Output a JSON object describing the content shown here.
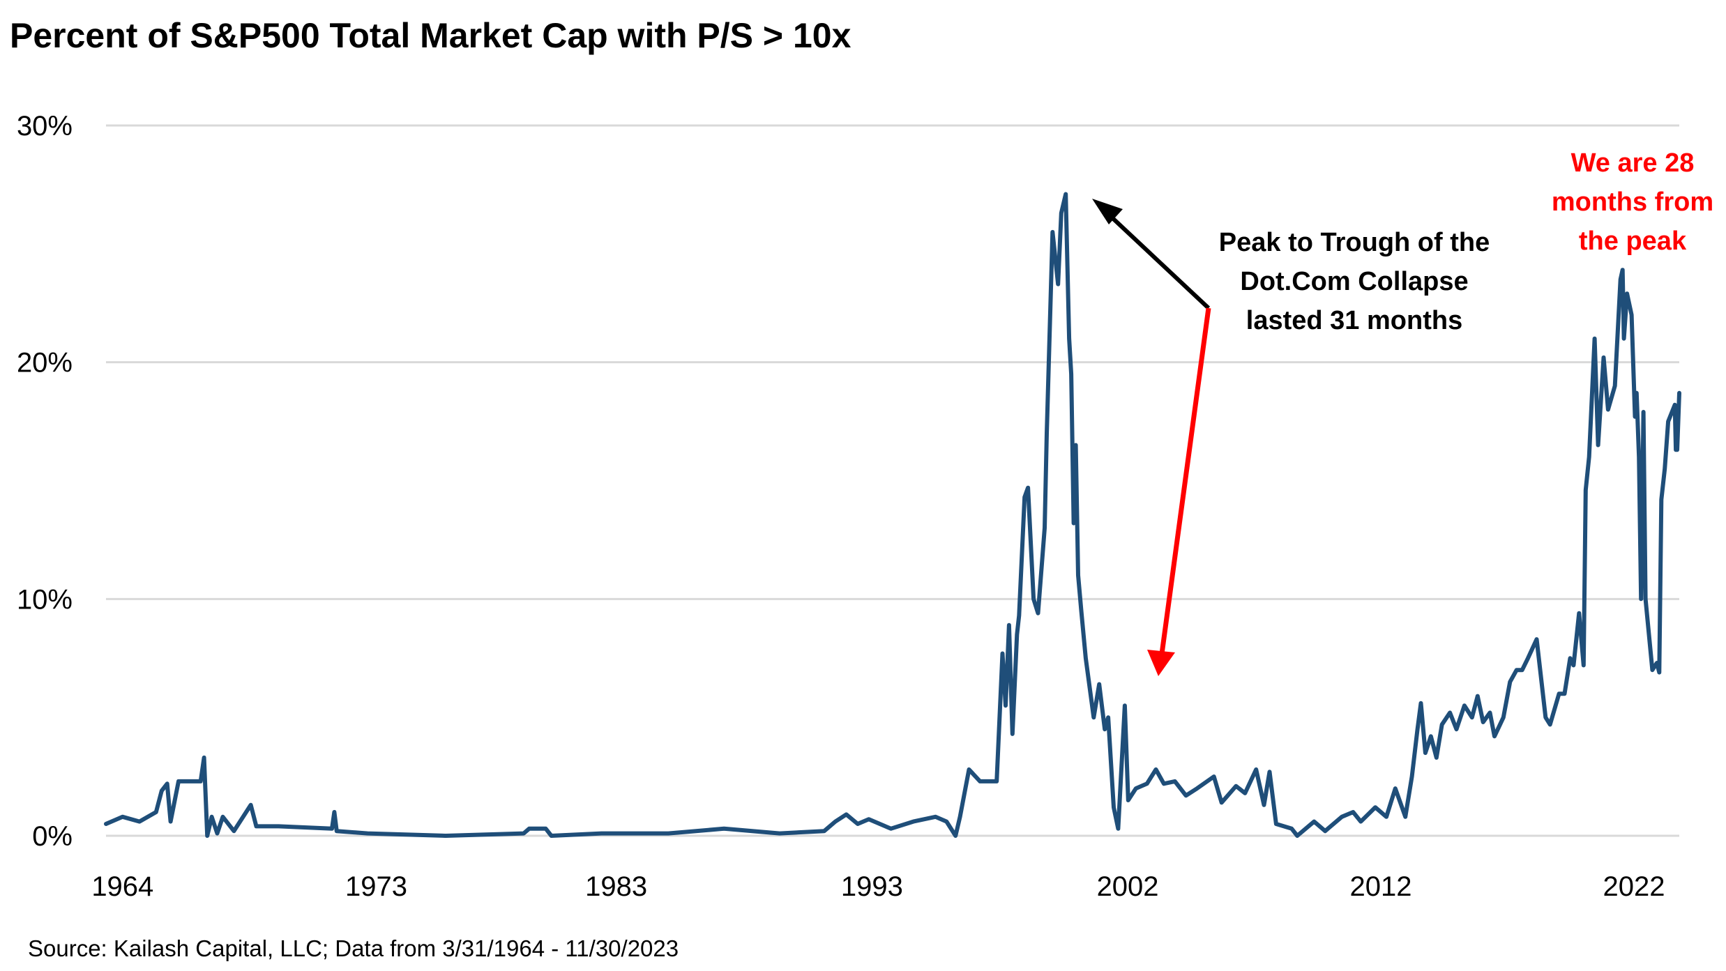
{
  "chart_data": {
    "type": "line",
    "title": "Percent of S&P500 Total Market Cap with P/S > 10x",
    "xlabel": "",
    "ylabel": "",
    "ylim": [
      0,
      30
    ],
    "xlim": [
      1964.25,
      2023.92
    ],
    "yticks": [
      {
        "value": 0,
        "label": "0%"
      },
      {
        "value": 10,
        "label": "10%"
      },
      {
        "value": 20,
        "label": "20%"
      },
      {
        "value": 30,
        "label": "30%"
      }
    ],
    "xticks": [
      {
        "at": 1964.88,
        "label": "1964"
      },
      {
        "at": 1974.5,
        "label": "1973"
      },
      {
        "at": 1983.6,
        "label": "1983"
      },
      {
        "at": 1993.3,
        "label": "1993"
      },
      {
        "at": 2003.0,
        "label": "2002"
      },
      {
        "at": 2012.6,
        "label": "2012"
      },
      {
        "at": 2022.2,
        "label": "2022"
      }
    ],
    "grid": "horizontal",
    "series": [
      {
        "name": "Percent of market cap with P/S > 10x",
        "color": "#1f4e79",
        "points": [
          [
            1964.25,
            0.5
          ],
          [
            1964.88,
            0.8
          ],
          [
            1965.52,
            0.6
          ],
          [
            1966.15,
            1.0
          ],
          [
            1966.36,
            1.9
          ],
          [
            1966.57,
            2.2
          ],
          [
            1966.7,
            0.6
          ],
          [
            1967.0,
            2.3
          ],
          [
            1967.84,
            2.3
          ],
          [
            1967.97,
            3.3
          ],
          [
            1968.09,
            0.0
          ],
          [
            1968.26,
            0.8
          ],
          [
            1968.47,
            0.1
          ],
          [
            1968.68,
            0.8
          ],
          [
            1969.1,
            0.2
          ],
          [
            1969.74,
            1.3
          ],
          [
            1969.95,
            0.4
          ],
          [
            1970.8,
            0.4
          ],
          [
            1972.82,
            0.3
          ],
          [
            1972.91,
            1.0
          ],
          [
            1973.0,
            0.2
          ],
          [
            1974.17,
            0.1
          ],
          [
            1977.13,
            0.0
          ],
          [
            1980.09,
            0.1
          ],
          [
            1980.3,
            0.3
          ],
          [
            1980.93,
            0.3
          ],
          [
            1981.14,
            0.0
          ],
          [
            1983.04,
            0.1
          ],
          [
            1985.58,
            0.1
          ],
          [
            1987.69,
            0.3
          ],
          [
            1989.8,
            0.1
          ],
          [
            1991.49,
            0.2
          ],
          [
            1991.91,
            0.6
          ],
          [
            1992.33,
            0.9
          ],
          [
            1992.76,
            0.5
          ],
          [
            1993.18,
            0.7
          ],
          [
            1994.02,
            0.3
          ],
          [
            1994.87,
            0.6
          ],
          [
            1995.71,
            0.8
          ],
          [
            1996.13,
            0.6
          ],
          [
            1996.47,
            0.0
          ],
          [
            1996.64,
            0.8
          ],
          [
            1996.98,
            2.8
          ],
          [
            1997.4,
            2.3
          ],
          [
            1998.03,
            2.3
          ],
          [
            1998.25,
            7.7
          ],
          [
            1998.37,
            5.5
          ],
          [
            1998.5,
            8.9
          ],
          [
            1998.63,
            4.3
          ],
          [
            1998.8,
            8.5
          ],
          [
            1998.88,
            9.3
          ],
          [
            1999.09,
            14.3
          ],
          [
            1999.22,
            14.7
          ],
          [
            1999.43,
            10.0
          ],
          [
            1999.6,
            9.4
          ],
          [
            1999.85,
            13.0
          ],
          [
            1999.93,
            17.0
          ],
          [
            2000.15,
            25.5
          ],
          [
            2000.36,
            23.3
          ],
          [
            2000.48,
            26.3
          ],
          [
            2000.65,
            27.1
          ],
          [
            2000.78,
            21.0
          ],
          [
            2000.86,
            19.5
          ],
          [
            2000.95,
            13.2
          ],
          [
            2001.03,
            16.5
          ],
          [
            2001.12,
            11.0
          ],
          [
            2001.24,
            9.5
          ],
          [
            2001.41,
            7.5
          ],
          [
            2001.71,
            5.0
          ],
          [
            2001.92,
            6.4
          ],
          [
            2002.13,
            4.5
          ],
          [
            2002.26,
            5.0
          ],
          [
            2002.47,
            1.2
          ],
          [
            2002.64,
            0.3
          ],
          [
            2002.89,
            5.5
          ],
          [
            2003.02,
            1.5
          ],
          [
            2003.31,
            2.0
          ],
          [
            2003.73,
            2.2
          ],
          [
            2004.07,
            2.8
          ],
          [
            2004.37,
            2.2
          ],
          [
            2004.79,
            2.3
          ],
          [
            2005.21,
            1.7
          ],
          [
            2005.63,
            2.0
          ],
          [
            2006.27,
            2.5
          ],
          [
            2006.56,
            1.4
          ],
          [
            2007.11,
            2.1
          ],
          [
            2007.45,
            1.8
          ],
          [
            2007.87,
            2.8
          ],
          [
            2008.17,
            1.3
          ],
          [
            2008.38,
            2.7
          ],
          [
            2008.63,
            0.5
          ],
          [
            2009.22,
            0.3
          ],
          [
            2009.43,
            0.0
          ],
          [
            2010.07,
            0.6
          ],
          [
            2010.49,
            0.2
          ],
          [
            2011.12,
            0.8
          ],
          [
            2011.55,
            1.0
          ],
          [
            2011.84,
            0.6
          ],
          [
            2012.39,
            1.2
          ],
          [
            2012.81,
            0.8
          ],
          [
            2013.15,
            2.0
          ],
          [
            2013.53,
            0.8
          ],
          [
            2013.78,
            2.5
          ],
          [
            2013.99,
            4.5
          ],
          [
            2014.12,
            5.6
          ],
          [
            2014.29,
            3.5
          ],
          [
            2014.5,
            4.2
          ],
          [
            2014.71,
            3.3
          ],
          [
            2014.92,
            4.7
          ],
          [
            2015.22,
            5.2
          ],
          [
            2015.47,
            4.5
          ],
          [
            2015.77,
            5.5
          ],
          [
            2016.06,
            5.0
          ],
          [
            2016.27,
            5.9
          ],
          [
            2016.48,
            4.8
          ],
          [
            2016.74,
            5.2
          ],
          [
            2016.91,
            4.2
          ],
          [
            2017.25,
            5.0
          ],
          [
            2017.5,
            6.5
          ],
          [
            2017.75,
            7.0
          ],
          [
            2017.96,
            7.0
          ],
          [
            2018.18,
            7.5
          ],
          [
            2018.51,
            8.3
          ],
          [
            2018.85,
            5.0
          ],
          [
            2019.02,
            4.7
          ],
          [
            2019.36,
            6.0
          ],
          [
            2019.57,
            6.0
          ],
          [
            2019.78,
            7.5
          ],
          [
            2019.91,
            7.2
          ],
          [
            2020.12,
            9.4
          ],
          [
            2020.29,
            7.2
          ],
          [
            2020.37,
            14.6
          ],
          [
            2020.5,
            16.0
          ],
          [
            2020.71,
            21.0
          ],
          [
            2020.84,
            16.5
          ],
          [
            2021.05,
            20.2
          ],
          [
            2021.22,
            18.0
          ],
          [
            2021.48,
            19.0
          ],
          [
            2021.69,
            23.5
          ],
          [
            2021.77,
            23.9
          ],
          [
            2021.82,
            21.0
          ],
          [
            2021.94,
            22.9
          ],
          [
            2022.11,
            22.0
          ],
          [
            2022.24,
            17.7
          ],
          [
            2022.3,
            18.7
          ],
          [
            2022.39,
            16.0
          ],
          [
            2022.47,
            10.0
          ],
          [
            2022.56,
            17.9
          ],
          [
            2022.64,
            10.0
          ],
          [
            2022.9,
            7.0
          ],
          [
            2023.07,
            7.3
          ],
          [
            2023.16,
            6.9
          ],
          [
            2023.24,
            14.2
          ],
          [
            2023.37,
            15.5
          ],
          [
            2023.5,
            17.5
          ],
          [
            2023.75,
            18.2
          ],
          [
            2023.79,
            16.3
          ],
          [
            2023.84,
            16.3
          ],
          [
            2023.92,
            18.7
          ]
        ]
      }
    ],
    "annotations": {
      "dotcom": [
        "Peak to Trough of the",
        "Dot.Com Collapse",
        "lasted 31 months"
      ],
      "current": [
        "We are 28",
        "months from",
        "the peak"
      ],
      "current_color": "#ff0000",
      "arrow_black_color": "#000000",
      "arrow_red_color": "#ff0000"
    },
    "source": "Source: Kailash Capital, LLC; Data from 3/31/1964 - 11/30/2023"
  }
}
